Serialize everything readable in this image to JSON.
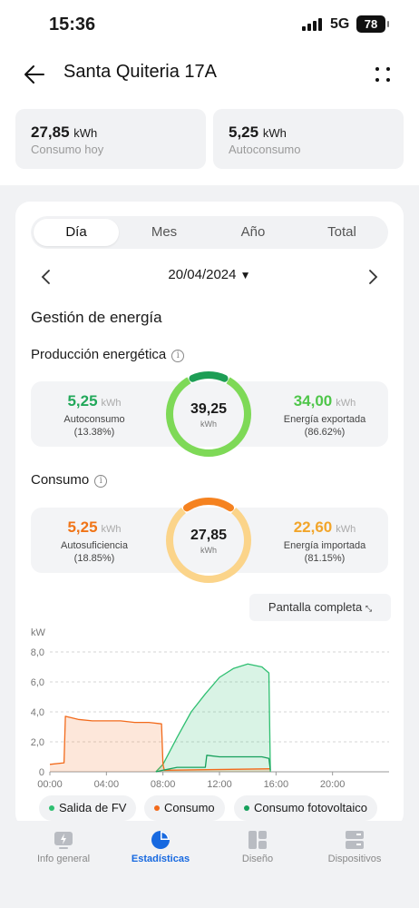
{
  "status": {
    "time": "15:36",
    "network": "5G",
    "battery": "78"
  },
  "header": {
    "title": "Santa Quiteria 17A",
    "back_icon": "arrow-left-icon",
    "menu_icon": "grid-dots-icon"
  },
  "summary": [
    {
      "value": "27,85",
      "unit": "kWh",
      "label": "Consumo hoy"
    },
    {
      "value": "5,25",
      "unit": "kWh",
      "label": "Autoconsumo"
    }
  ],
  "tabs": [
    "Día",
    "Mes",
    "Año",
    "Total"
  ],
  "active_tab": "Día",
  "date": {
    "value": "20/04/2024",
    "prev_icon": "chevron-left-icon",
    "next_icon": "chevron-right-icon",
    "dropdown_icon": "caret-down-icon"
  },
  "section_title": "Gestión de energía",
  "production": {
    "title": "Producción energética",
    "total": "39,25",
    "unit": "kWh",
    "left": {
      "value": "5,25",
      "unit": "kWh",
      "label": "Autoconsumo",
      "pct": "(13.38%)",
      "color": "#22a85a"
    },
    "right": {
      "value": "34,00",
      "unit": "kWh",
      "label": "Energía exportada",
      "pct": "(86.62%)",
      "color": "#4fc64a"
    },
    "ring_colors": {
      "main": "#7ed957",
      "segment": "#1d9e55"
    },
    "segment_fraction": 0.1338
  },
  "consumption": {
    "title": "Consumo",
    "total": "27,85",
    "unit": "kWh",
    "left": {
      "value": "5,25",
      "unit": "kWh",
      "label": "Autosuficiencia",
      "pct": "(18.85%)",
      "color": "#f07417"
    },
    "right": {
      "value": "22,60",
      "unit": "kWh",
      "label": "Energía importada",
      "pct": "(81.15%)",
      "color": "#f2a52a"
    },
    "ring_colors": {
      "main": "#fbd48a",
      "segment": "#f58220"
    },
    "segment_fraction": 0.1885
  },
  "fullscreen_label": "Pantalla completa",
  "chart_data": {
    "type": "area",
    "ylabel": "kW",
    "yticks": [
      "0",
      "2,0",
      "4,0",
      "6,0",
      "8,0"
    ],
    "ylim": [
      0,
      8
    ],
    "xticks": [
      "00:00",
      "04:00",
      "08:00",
      "12:00",
      "16:00",
      "20:00"
    ],
    "xlim": [
      0,
      24
    ],
    "grid": "horizontal dashed",
    "series": [
      {
        "name": "Salida de FV",
        "color": "#2fbf71",
        "x": [
          7.5,
          8,
          9,
          10,
          11,
          12,
          13,
          14,
          14.5,
          15,
          15.5,
          15.6
        ],
        "y": [
          0,
          0.5,
          2.3,
          4.0,
          5.2,
          6.3,
          6.9,
          7.2,
          7.1,
          7.0,
          6.6,
          0
        ]
      },
      {
        "name": "Consumo",
        "color": "#f26a1b",
        "x": [
          0,
          1,
          1.1,
          2,
          3,
          4,
          5,
          6,
          7,
          7.9,
          8,
          8.1,
          15.6
        ],
        "y": [
          0.5,
          0.6,
          3.7,
          3.5,
          3.4,
          3.4,
          3.4,
          3.3,
          3.3,
          3.2,
          0.5,
          0.1,
          0.2
        ]
      },
      {
        "name": "Consumo fotovoltaico",
        "color": "#16a05b",
        "x": [
          7.5,
          8,
          9,
          10,
          11,
          11.1,
          12,
          13,
          14,
          15,
          15.5,
          15.6
        ],
        "y": [
          0,
          0.1,
          0.3,
          0.3,
          0.3,
          1.1,
          1.0,
          1.0,
          1.0,
          1.0,
          0.9,
          0.1
        ]
      }
    ]
  },
  "legend": [
    "Salida de FV",
    "Consumo",
    "Consumo fotovoltaico"
  ],
  "nav": [
    {
      "label": "Info general",
      "icon": "dashboard-icon"
    },
    {
      "label": "Estadísticas",
      "icon": "pie-chart-icon",
      "active": true
    },
    {
      "label": "Diseño",
      "icon": "layout-icon"
    },
    {
      "label": "Dispositivos",
      "icon": "devices-icon"
    }
  ]
}
